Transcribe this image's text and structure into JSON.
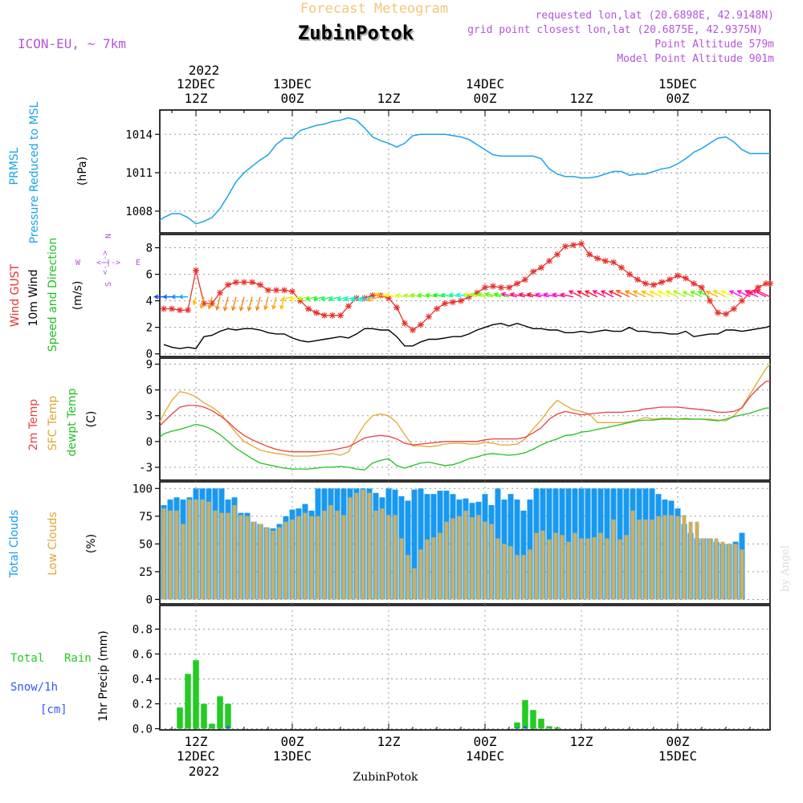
{
  "header": {
    "faded_title": "Forecast Meteogram",
    "station": "ZubinPotok",
    "model": "ICON-EU, ~ 7km",
    "requested": "requested lon,lat (20.6898E, 42.9148N)",
    "closest_prefix": "grid point closest lon,lat (20.6875E, 42.9375N)",
    "point_alt": "Point Altitude 579m",
    "model_alt": "Model Point Altitude 901m"
  },
  "footer_station": "ZubinPotok",
  "watermark": "by Angel",
  "time_axis": {
    "top_year": "2022",
    "ticks": [
      {
        "date": "12DEC",
        "hour": "12Z",
        "t": 12
      },
      {
        "date": "13DEC",
        "hour": "00Z",
        "t": 24
      },
      {
        "date": "",
        "hour": "12Z",
        "t": 36
      },
      {
        "date": "14DEC",
        "hour": "00Z",
        "t": 48
      },
      {
        "date": "",
        "hour": "12Z",
        "t": 60
      },
      {
        "date": "15DEC",
        "hour": "00Z",
        "t": 72
      }
    ],
    "bottom_year": "2022",
    "t_start": 7.5,
    "t_end": 83.5
  },
  "panel_labels": {
    "pressure": {
      "line1": "PRMSL",
      "line2": "Pressure Reduced to MSL",
      "unit": "(hPa)"
    },
    "wind": {
      "gust": "Wind GUST",
      "wind10": "10m Wind",
      "speed": "Speed and Direction",
      "unit": "(m/s)",
      "compass": {
        "n": "N",
        "s": "S",
        "w": "W",
        "e": "E",
        "arrow": "<-|->"
      }
    },
    "temp": {
      "t2m": "2m Temp",
      "sfc": "SFC Temp",
      "dew": "dewpt Temp",
      "unit": "(C)"
    },
    "clouds": {
      "total": "Total Clouds",
      "low": "Low Clouds",
      "unit": "(%)"
    },
    "precip": {
      "rain_a": "Total",
      "rain_b": "Rain",
      "snow": "Snow/1h",
      "cm": "[cm]",
      "axis": "1hr Precip (mm)"
    }
  },
  "colors": {
    "pressure": "#1aa3e8",
    "gust": "#e8302c",
    "wind": "#000000",
    "t2m": "#e84040",
    "sfc": "#e0a830",
    "dew": "#22c022",
    "total_clouds": "#1899f0",
    "low_clouds": "#c8b068",
    "rain": "#22cc22",
    "snow": "#3355ff",
    "header_purple": "#b455d8",
    "faded": "#f0c878"
  },
  "chart_data": [
    {
      "type": "line",
      "name": "pressure",
      "ylabel": "(hPa)",
      "ylim": [
        1006.3,
        1015.9
      ],
      "yticks": [
        1008,
        1011,
        1014
      ],
      "x": [
        7.5,
        8,
        9,
        10,
        11,
        12,
        13,
        14,
        15,
        16,
        17,
        18,
        19,
        20,
        21,
        22,
        23,
        24,
        25,
        26,
        27,
        28,
        29,
        30,
        31,
        32,
        33,
        34,
        35,
        36,
        37,
        38,
        39,
        40,
        41,
        42,
        43,
        44,
        45,
        46,
        47,
        48,
        49,
        50,
        51,
        52,
        53,
        54,
        55,
        56,
        57,
        58,
        59,
        60,
        61,
        62,
        63,
        64,
        65,
        66,
        67,
        68,
        69,
        70,
        71,
        72,
        73,
        74,
        75,
        76,
        77,
        78,
        79,
        80,
        81,
        82,
        83,
        83.5
      ],
      "values": [
        1007.3,
        1007.5,
        1007.8,
        1007.8,
        1007.5,
        1007.0,
        1007.2,
        1007.5,
        1008.2,
        1009.2,
        1010.3,
        1011.0,
        1011.5,
        1012.0,
        1012.4,
        1013.2,
        1013.7,
        1013.7,
        1014.3,
        1014.5,
        1014.7,
        1014.8,
        1015.0,
        1015.1,
        1015.3,
        1015.1,
        1014.5,
        1013.8,
        1013.5,
        1013.3,
        1013.0,
        1013.3,
        1013.9,
        1014.0,
        1014.0,
        1014.0,
        1014.0,
        1013.9,
        1013.8,
        1013.6,
        1013.2,
        1012.8,
        1012.4,
        1012.3,
        1012.3,
        1012.3,
        1012.3,
        1012.3,
        1012.1,
        1011.3,
        1010.9,
        1010.7,
        1010.7,
        1010.6,
        1010.6,
        1010.7,
        1010.9,
        1011.1,
        1011.1,
        1010.8,
        1010.9,
        1010.9,
        1011.1,
        1011.3,
        1011.4,
        1011.7,
        1012.1,
        1012.6,
        1012.9,
        1013.3,
        1013.7,
        1013.8,
        1013.4,
        1012.8,
        1012.5,
        1012.5,
        1012.5,
        1012.5
      ],
      "note": "values held constant after t=81 approximated"
    },
    {
      "type": "line",
      "name": "wind",
      "ylabel": "(m/s)",
      "ylim": [
        -0.2,
        9.0
      ],
      "yticks": [
        0,
        2,
        4,
        6,
        8
      ],
      "x": [
        8,
        9,
        10,
        11,
        12,
        13,
        14,
        15,
        16,
        17,
        18,
        19,
        20,
        21,
        22,
        23,
        24,
        25,
        26,
        27,
        28,
        29,
        30,
        31,
        32,
        33,
        34,
        35,
        36,
        37,
        38,
        39,
        40,
        41,
        42,
        43,
        44,
        45,
        46,
        47,
        48,
        49,
        50,
        51,
        52,
        53,
        54,
        55,
        56,
        57,
        58,
        59,
        60,
        61,
        62,
        63,
        64,
        65,
        66,
        67,
        68,
        69,
        70,
        71,
        72,
        73,
        74,
        75,
        76,
        77,
        78,
        79,
        80,
        81,
        82,
        83,
        83.5
      ],
      "gust": [
        3.4,
        3.4,
        3.3,
        3.3,
        6.3,
        3.8,
        3.8,
        4.6,
        5.2,
        5.4,
        5.4,
        5.4,
        5.2,
        4.8,
        4.8,
        4.8,
        4.7,
        4.0,
        3.4,
        3.1,
        2.9,
        2.9,
        2.9,
        3.6,
        4.2,
        4.2,
        4.4,
        4.4,
        4.2,
        3.5,
        2.3,
        1.8,
        2.2,
        2.8,
        3.4,
        3.8,
        3.9,
        4.0,
        4.3,
        4.6,
        5.0,
        5.1,
        5.0,
        5.0,
        5.3,
        5.6,
        6.2,
        6.5,
        7.0,
        7.5,
        8.1,
        8.2,
        8.3,
        7.5,
        7.2,
        7.0,
        6.9,
        6.5,
        6.0,
        5.6,
        5.3,
        5.2,
        5.4,
        5.6,
        5.9,
        5.7,
        5.3,
        5.0,
        4.0,
        3.1,
        3.0,
        3.4,
        4.0,
        4.6,
        5.0,
        5.3,
        5.3
      ],
      "wind": [
        0.7,
        0.5,
        0.4,
        0.5,
        0.4,
        1.3,
        1.4,
        1.7,
        1.9,
        1.8,
        1.9,
        1.9,
        1.8,
        1.6,
        1.5,
        1.5,
        1.2,
        1.0,
        0.9,
        1.0,
        1.1,
        1.2,
        1.3,
        1.2,
        1.5,
        1.9,
        1.9,
        1.8,
        1.8,
        1.3,
        0.6,
        0.6,
        0.9,
        1.1,
        1.1,
        1.2,
        1.3,
        1.3,
        1.5,
        1.8,
        2.0,
        2.2,
        2.3,
        2.1,
        2.3,
        2.1,
        1.9,
        1.9,
        1.8,
        1.8,
        1.6,
        1.6,
        1.7,
        1.6,
        1.7,
        1.8,
        1.7,
        1.7,
        2.0,
        1.7,
        1.7,
        1.6,
        1.6,
        1.5,
        1.5,
        1.7,
        1.3,
        1.4,
        1.5,
        1.5,
        1.8,
        1.8,
        1.7,
        1.8,
        1.9,
        2.0,
        2.1
      ]
    },
    {
      "type": "line",
      "name": "temperature",
      "ylabel": "(C)",
      "ylim": [
        -4.5,
        9.7
      ],
      "yticks": [
        -3,
        0,
        3,
        6,
        9
      ],
      "x": [
        7.5,
        8,
        9,
        10,
        11,
        12,
        13,
        14,
        15,
        16,
        17,
        18,
        19,
        20,
        21,
        22,
        23,
        24,
        25,
        26,
        27,
        28,
        29,
        30,
        31,
        32,
        33,
        34,
        35,
        36,
        37,
        38,
        39,
        40,
        41,
        42,
        43,
        44,
        45,
        46,
        47,
        48,
        49,
        50,
        51,
        52,
        53,
        54,
        55,
        56,
        57,
        58,
        59,
        60,
        61,
        62,
        63,
        64,
        65,
        66,
        67,
        68,
        69,
        70,
        71,
        72,
        73,
        74,
        75,
        76,
        77,
        78,
        79,
        80,
        81,
        82,
        83,
        83.5
      ],
      "t2m": [
        1.8,
        2.3,
        3.2,
        4.0,
        4.2,
        4.2,
        4.0,
        3.6,
        3.0,
        2.3,
        1.4,
        0.7,
        0.2,
        -0.2,
        -0.6,
        -0.9,
        -1.1,
        -1.2,
        -1.2,
        -1.2,
        -1.2,
        -1.1,
        -1.0,
        -0.8,
        -0.6,
        -0.1,
        0.4,
        0.6,
        0.7,
        0.6,
        0.3,
        -0.2,
        -0.4,
        -0.3,
        -0.2,
        -0.1,
        0.0,
        0.0,
        0.0,
        0.0,
        0.0,
        0.2,
        0.3,
        0.3,
        0.3,
        0.3,
        0.5,
        1.0,
        1.6,
        2.6,
        3.2,
        3.5,
        3.3,
        3.1,
        3.2,
        3.3,
        3.4,
        3.4,
        3.4,
        3.5,
        3.6,
        3.8,
        3.9,
        4.0,
        4.0,
        4.0,
        3.9,
        3.8,
        3.7,
        3.6,
        3.4,
        3.4,
        3.5,
        3.9,
        5.2,
        6.2,
        7.0,
        7.0
      ],
      "sfc": [
        2.3,
        3.2,
        4.8,
        5.8,
        5.6,
        5.2,
        4.5,
        4.0,
        3.3,
        2.2,
        1.0,
        0.0,
        -0.5,
        -1.0,
        -1.2,
        -1.4,
        -1.5,
        -1.7,
        -1.7,
        -1.7,
        -1.6,
        -1.5,
        -1.4,
        -1.6,
        -1.2,
        0.5,
        2.0,
        3.0,
        3.2,
        3.0,
        2.2,
        0.8,
        -0.5,
        -0.5,
        -0.6,
        -0.5,
        -0.3,
        -0.2,
        -0.2,
        -0.3,
        -0.3,
        -0.1,
        -0.2,
        -0.4,
        -0.4,
        -0.3,
        0.3,
        1.5,
        2.5,
        3.8,
        4.8,
        4.2,
        3.7,
        3.5,
        3.2,
        2.2,
        2.2,
        2.2,
        2.2,
        2.3,
        2.5,
        2.8,
        2.6,
        2.7,
        2.7,
        2.6,
        2.7,
        2.6,
        2.6,
        2.6,
        2.5,
        2.4,
        3.0,
        4.0,
        5.5,
        7.0,
        8.5,
        9.0
      ],
      "dew": [
        0.5,
        0.9,
        1.2,
        1.4,
        1.7,
        2.0,
        1.8,
        1.4,
        0.8,
        0.0,
        -0.8,
        -1.4,
        -2.0,
        -2.5,
        -2.7,
        -2.9,
        -3.1,
        -3.2,
        -3.2,
        -3.2,
        -3.1,
        -3.0,
        -3.0,
        -2.9,
        -3.0,
        -3.2,
        -3.3,
        -2.5,
        -2.2,
        -2.0,
        -2.8,
        -3.1,
        -2.8,
        -2.5,
        -2.4,
        -2.6,
        -2.8,
        -2.7,
        -2.4,
        -2.0,
        -1.8,
        -1.5,
        -1.4,
        -1.5,
        -1.6,
        -1.5,
        -1.3,
        -0.9,
        -0.4,
        0.0,
        0.3,
        0.7,
        0.8,
        1.1,
        1.2,
        1.4,
        1.6,
        1.8,
        2.0,
        2.2,
        2.4,
        2.5,
        2.5,
        2.6,
        2.6,
        2.6,
        2.6,
        2.6,
        2.6,
        2.5,
        2.4,
        2.6,
        2.9,
        3.1,
        3.3,
        3.6,
        3.9,
        3.9
      ]
    },
    {
      "type": "bar",
      "name": "clouds",
      "ylabel": "(%)",
      "ylim": [
        -4,
        106
      ],
      "yticks": [
        0,
        25,
        50,
        75,
        100
      ],
      "t_first": 8,
      "total": [
        85,
        90,
        92,
        90,
        92,
        100,
        100,
        100,
        100,
        100,
        90,
        92,
        78,
        78,
        70,
        68,
        65,
        64,
        68,
        75,
        81,
        82,
        86,
        80,
        100,
        100,
        100,
        100,
        100,
        100,
        100,
        100,
        100,
        96,
        92,
        100,
        99,
        93,
        89,
        99,
        100,
        95,
        95,
        98,
        98,
        95,
        90,
        91,
        87,
        88,
        95,
        85,
        100,
        90,
        95,
        90,
        80,
        90,
        100,
        100,
        100,
        100,
        100,
        100,
        100,
        100,
        100,
        100,
        100,
        100,
        100,
        100,
        100,
        100,
        100,
        100,
        100,
        95,
        90,
        89,
        82,
        68,
        60,
        55,
        55,
        55,
        52,
        50,
        50,
        52,
        60
      ],
      "low": [
        82,
        80,
        80,
        68,
        90,
        90,
        90,
        88,
        80,
        78,
        78,
        85,
        76,
        75,
        70,
        68,
        65,
        62,
        65,
        70,
        72,
        75,
        78,
        75,
        75,
        80,
        85,
        80,
        76,
        92,
        96,
        99,
        96,
        80,
        82,
        76,
        76,
        55,
        40,
        28,
        45,
        54,
        56,
        60,
        70,
        73,
        75,
        80,
        74,
        76,
        70,
        68,
        55,
        50,
        48,
        40,
        40,
        45,
        60,
        62,
        54,
        60,
        58,
        52,
        60,
        55,
        55,
        56,
        60,
        55,
        72,
        54,
        58,
        80,
        72,
        72,
        72,
        75,
        76,
        76,
        75,
        76,
        70,
        70,
        55,
        55,
        55,
        52,
        50,
        50,
        45
      ]
    },
    {
      "type": "bar",
      "name": "precipitation",
      "ylabel": "1hr Precip (mm)",
      "ylim": [
        -0.01,
        0.99
      ],
      "yticks": [
        0,
        0.2,
        0.4,
        0.6,
        0.8
      ],
      "x": [
        10,
        11,
        12,
        13,
        14,
        15,
        16,
        52,
        53,
        54,
        55,
        56,
        57
      ],
      "rain": [
        0.17,
        0.44,
        0.55,
        0.2,
        0.04,
        0.26,
        0.2,
        0.05,
        0.23,
        0.15,
        0.08,
        0.02,
        0.01
      ],
      "snow_x": [
        16,
        52,
        53
      ],
      "snow": [
        0.02,
        0.01,
        0.02
      ]
    }
  ]
}
